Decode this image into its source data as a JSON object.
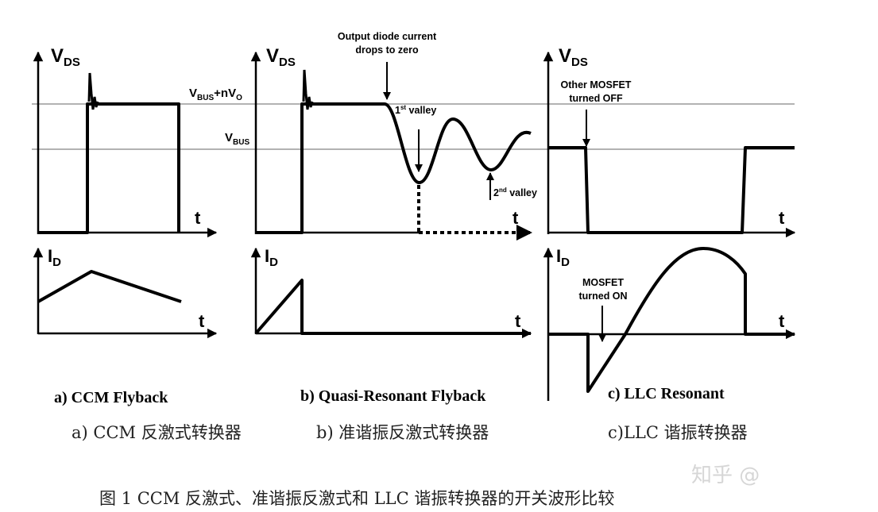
{
  "labels": {
    "vds_main": "V",
    "vds_sub": "DS",
    "id_main": "I",
    "id_sub": "D",
    "t": "t",
    "vbus_nvo": {
      "v1": "V",
      "s1": "BUS",
      "plus": "+nV",
      "s2": "O"
    },
    "vbus": {
      "v": "V",
      "s": "BUS"
    }
  },
  "annotations": {
    "diode_line1": "Output diode current",
    "diode_line2": "drops to zero",
    "valley1": {
      "n": "1",
      "sup": "st",
      "txt": " valley"
    },
    "valley2": {
      "n": "2",
      "sup": "nd",
      "txt": " valley"
    },
    "other_off_line1": "Other MOSFET",
    "other_off_line2": "turned OFF",
    "on_line1": "MOSFET",
    "on_line2": "turned ON"
  },
  "captions": {
    "a_en": "a) CCM Flyback",
    "b_en": "b) Quasi-Resonant Flyback",
    "c_en": "c) LLC Resonant",
    "a_cn": "a)  CCM 反激式转换器",
    "b_cn": "b) 准谐振反激式转换器",
    "c_cn": "c)LLC 谐振转换器",
    "figure": "图 1   CCM 反激式、准谐振反激式和 LLC 谐振转换器的开关波形比较"
  },
  "watermark": "知乎 @"
}
